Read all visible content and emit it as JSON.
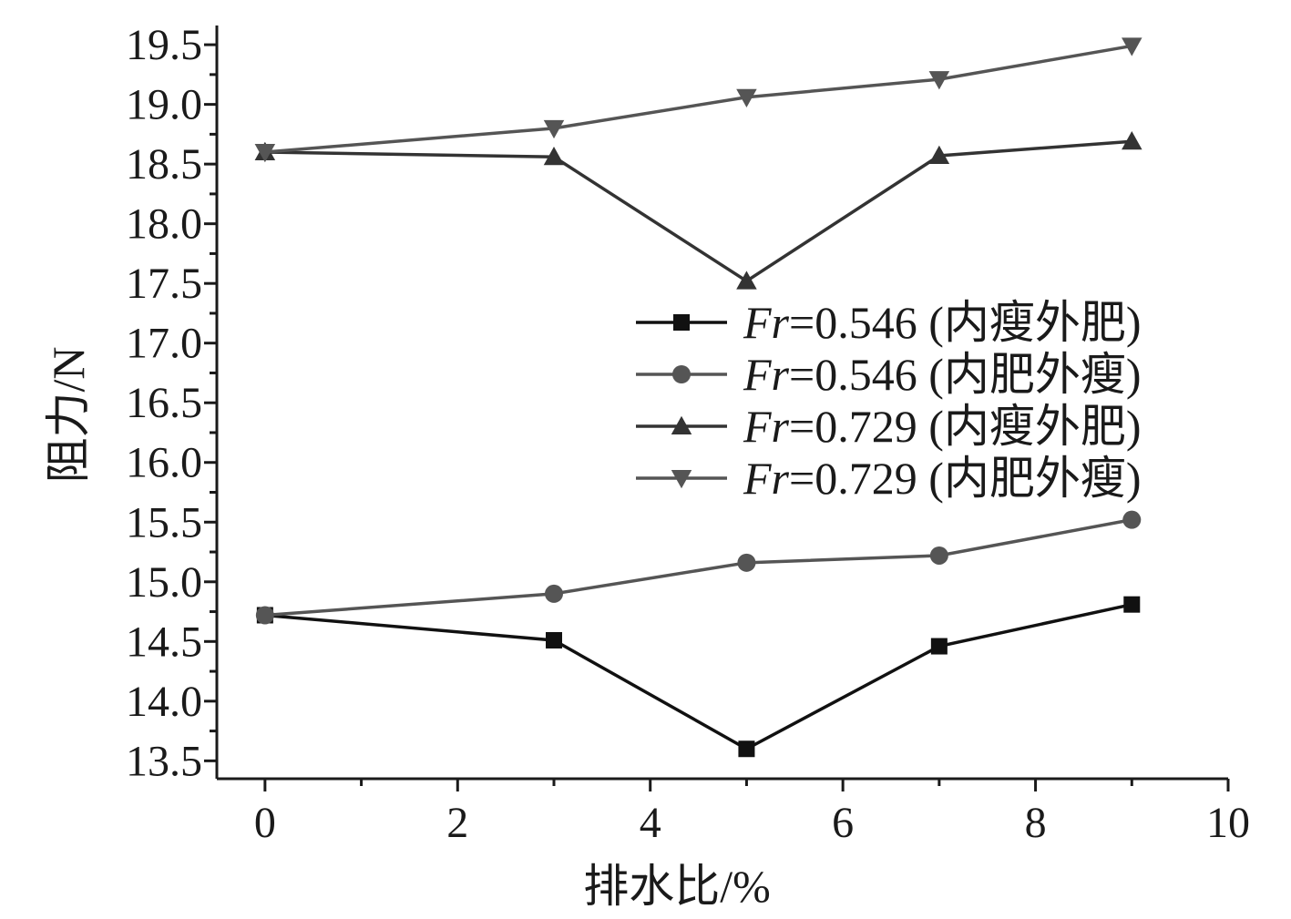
{
  "chart_data": {
    "type": "line",
    "xlabel": "排水比/%",
    "ylabel": "阻力/N",
    "xlim": [
      -0.5,
      10
    ],
    "ylim": [
      13.35,
      19.6
    ],
    "x_ticks": [
      0,
      2,
      4,
      6,
      8,
      10
    ],
    "x_tick_labels": [
      "0",
      "2",
      "4",
      "6",
      "8",
      "10"
    ],
    "y_ticks": [
      13.5,
      14.0,
      14.5,
      15.0,
      15.5,
      16.0,
      16.5,
      17.0,
      17.5,
      18.0,
      18.5,
      19.0,
      19.5
    ],
    "y_tick_labels": [
      "13.5",
      "14.0",
      "14.5",
      "15.0",
      "15.5",
      "16.0",
      "16.5",
      "17.0",
      "17.5",
      "18.0",
      "18.5",
      "19.0",
      "19.5"
    ],
    "grid": false,
    "legend_position": "center-right",
    "x": [
      0,
      3,
      5,
      7,
      9
    ],
    "series": [
      {
        "name": "Fr=0.546 (内瘦外肥)",
        "name_italic": "Fr",
        "name_rest": "=0.546 (内瘦外肥)",
        "marker": "square",
        "color": "#111111",
        "values": [
          14.72,
          14.51,
          13.6,
          14.46,
          14.81
        ]
      },
      {
        "name": "Fr=0.546 (内肥外瘦)",
        "name_italic": "Fr",
        "name_rest": "=0.546 (内肥外瘦)",
        "marker": "circle",
        "color": "#555555",
        "values": [
          14.72,
          14.9,
          15.16,
          15.22,
          15.52
        ]
      },
      {
        "name": "Fr=0.729 (内瘦外肥)",
        "name_italic": "Fr",
        "name_rest": "=0.729 (内瘦外肥)",
        "marker": "triangle-up",
        "color": "#333333",
        "values": [
          18.6,
          18.56,
          17.52,
          18.57,
          18.69
        ]
      },
      {
        "name": "Fr=0.729 (内肥外瘦)",
        "name_italic": "Fr",
        "name_rest": "=0.729 (内肥外瘦)",
        "marker": "triangle-down",
        "color": "#555555",
        "values": [
          18.6,
          18.8,
          19.06,
          19.21,
          19.49
        ]
      }
    ]
  }
}
